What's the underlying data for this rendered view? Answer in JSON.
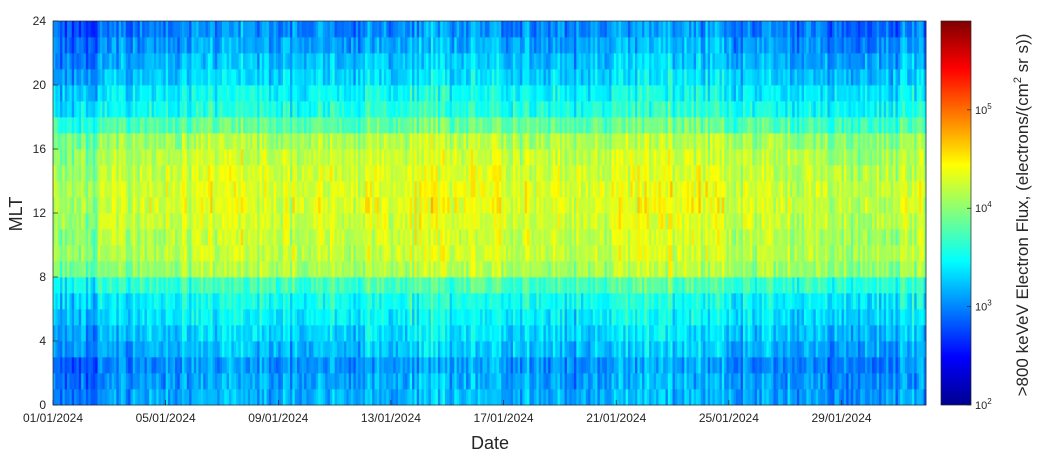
{
  "chart_data": {
    "type": "heatmap",
    "xlabel": "Date",
    "ylabel": "MLT",
    "colorbar_label": ">800 keVeV Electron Flux, (electrons/(cm² sr s))",
    "colorbar_label_parts": {
      "main": ">800 keVeV Electron Flux, (electrons/(cm",
      "sup": "2",
      "tail": " sr s))"
    },
    "colormap": "jet",
    "x_range": [
      "01/01/2024",
      "01/02/2024"
    ],
    "x_ticks": [
      "01/01/2024",
      "05/01/2024",
      "09/01/2024",
      "13/01/2024",
      "17/01/2024",
      "21/01/2024",
      "25/01/2024",
      "29/01/2024"
    ],
    "y_range": [
      0,
      24
    ],
    "y_ticks": [
      "0",
      "4",
      "8",
      "12",
      "16",
      "20",
      "24"
    ],
    "y_bin_width_hours": 1,
    "x_bin_width_hours": 2,
    "color_scale": "log",
    "color_range": [
      100,
      800000
    ],
    "colorbar_ticks": [
      {
        "value": 100,
        "base": "10",
        "exp": "2"
      },
      {
        "value": 1000,
        "base": "10",
        "exp": "3"
      },
      {
        "value": 10000,
        "base": "10",
        "exp": "4"
      },
      {
        "value": 100000,
        "base": "10",
        "exp": "5"
      }
    ],
    "mlt_profile_log10": [
      3.15,
      3.1,
      3.05,
      3.2,
      3.3,
      3.4,
      3.5,
      3.7,
      4.1,
      4.2,
      4.2,
      4.25,
      4.3,
      4.3,
      4.25,
      4.2,
      4.1,
      3.8,
      3.55,
      3.45,
      3.3,
      3.2,
      3.1,
      3.0
    ],
    "daily_offsets_log10": [
      {
        "date": "01/01/2024",
        "offset": -0.25
      },
      {
        "date": "02/01/2024",
        "offset": -0.2
      },
      {
        "date": "03/01/2024",
        "offset": -0.05
      },
      {
        "date": "04/01/2024",
        "offset": 0.0
      },
      {
        "date": "05/01/2024",
        "offset": 0.0
      },
      {
        "date": "06/01/2024",
        "offset": 0.05
      },
      {
        "date": "07/01/2024",
        "offset": 0.1
      },
      {
        "date": "08/01/2024",
        "offset": 0.05
      },
      {
        "date": "09/01/2024",
        "offset": 0.0
      },
      {
        "date": "10/01/2024",
        "offset": 0.0
      },
      {
        "date": "11/01/2024",
        "offset": 0.0
      },
      {
        "date": "12/01/2024",
        "offset": 0.05
      },
      {
        "date": "13/01/2024",
        "offset": 0.1
      },
      {
        "date": "14/01/2024",
        "offset": 0.15
      },
      {
        "date": "15/01/2024",
        "offset": 0.1
      },
      {
        "date": "16/01/2024",
        "offset": 0.1
      },
      {
        "date": "17/01/2024",
        "offset": 0.05
      },
      {
        "date": "18/01/2024",
        "offset": 0.0
      },
      {
        "date": "19/01/2024",
        "offset": -0.05
      },
      {
        "date": "20/01/2024",
        "offset": 0.0
      },
      {
        "date": "21/01/2024",
        "offset": 0.05
      },
      {
        "date": "22/01/2024",
        "offset": 0.1
      },
      {
        "date": "23/01/2024",
        "offset": 0.1
      },
      {
        "date": "24/01/2024",
        "offset": 0.05
      },
      {
        "date": "25/01/2024",
        "offset": -0.05
      },
      {
        "date": "26/01/2024",
        "offset": -0.05
      },
      {
        "date": "27/01/2024",
        "offset": -0.05
      },
      {
        "date": "28/01/2024",
        "offset": -0.1
      },
      {
        "date": "29/01/2024",
        "offset": -0.1
      },
      {
        "date": "30/01/2024",
        "offset": -0.1
      },
      {
        "date": "31/01/2024",
        "offset": -0.05
      }
    ],
    "noise_amplitude_log10": 0.3,
    "grid": false,
    "colorbar_placement": "right"
  }
}
